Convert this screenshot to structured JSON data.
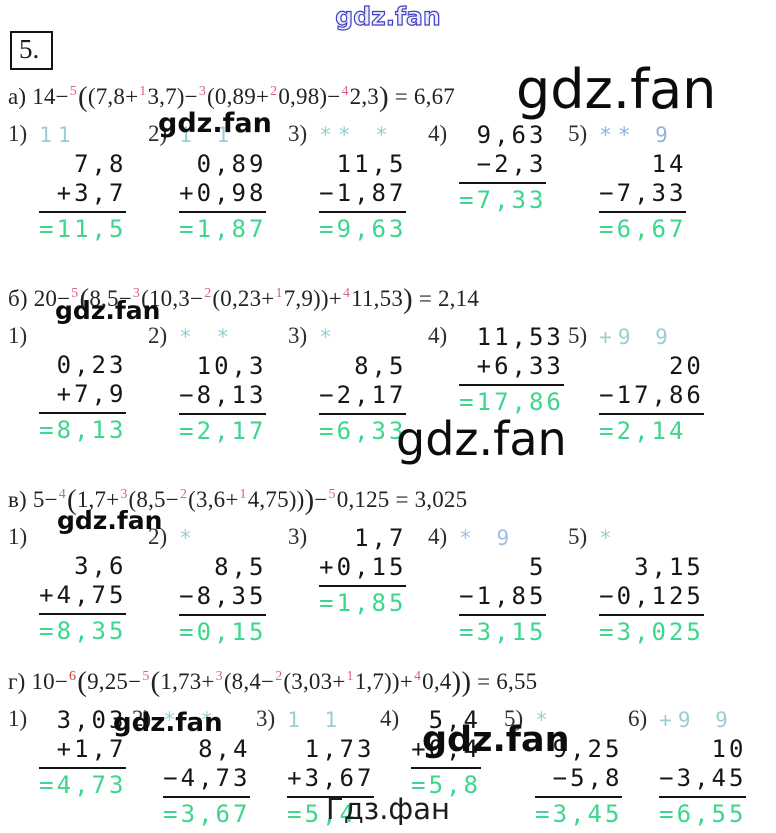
{
  "problem_number": "5.",
  "watermarks": {
    "top": "gdz.fan",
    "big_a": "gdz.fan",
    "row_a": "gdz.fan",
    "row_b": "gdz.fan",
    "mid": "gdz.fan",
    "row_v": "gdz.fan",
    "row_g1": "gdz.fan",
    "row_g2": "gdz.fan",
    "bottom": "Гдз.фан"
  },
  "colors": {
    "answer_green": "#3cd68c",
    "hint_teal": "#99cfd4",
    "superscript_pink": "#d96286",
    "superscript_red": "#c43c3c",
    "watermark_blue": "#4040c0"
  },
  "sections": [
    {
      "id": "a",
      "expr": [
        [
          "t",
          "а) 14−"
        ],
        [
          "s",
          "5"
        ],
        [
          "p",
          "("
        ],
        [
          "t",
          "(7,8+"
        ],
        [
          "s",
          "1"
        ],
        [
          "t",
          "3,7)−"
        ],
        [
          "s",
          "3"
        ],
        [
          "t",
          "(0,89+"
        ],
        [
          "s",
          "2"
        ],
        [
          "t",
          "0,98)−"
        ],
        [
          "s",
          "4"
        ],
        [
          "t",
          "2,3"
        ],
        [
          "p",
          ")"
        ],
        [
          "t",
          " = 6,67"
        ]
      ],
      "columns": [
        {
          "label": "1)",
          "hint": "11",
          "rows": [
            "7,8",
            "+3,7"
          ],
          "answer": "=11,5"
        },
        {
          "label": "2)",
          "hint": "1 1",
          "rows": [
            "0,89",
            "+0,98"
          ],
          "answer": "=1,87"
        },
        {
          "label": "3)",
          "hint": "** *",
          "rows": [
            "11,5",
            "−1,87"
          ],
          "answer": "=9,63"
        },
        {
          "label": "4)",
          "hint": null,
          "rows": [
            "9,63",
            "−2,3"
          ],
          "answer": "=7,33"
        },
        {
          "label": "5)",
          "hint": "** 9",
          "hint_color": "#8fb2e2",
          "rows": [
            "14",
            "−7,33"
          ],
          "answer": "=6,67"
        }
      ]
    },
    {
      "id": "b",
      "expr": [
        [
          "t",
          "б) 20−"
        ],
        [
          "s",
          "5"
        ],
        [
          "p",
          "("
        ],
        [
          "t",
          "8,5−"
        ],
        [
          "s",
          "3"
        ],
        [
          "t",
          "(10,3−"
        ],
        [
          "s",
          "2"
        ],
        [
          "t",
          "(0,23+"
        ],
        [
          "s",
          "1"
        ],
        [
          "t",
          "7,9))+"
        ],
        [
          "s",
          "4"
        ],
        [
          "t",
          "11,53"
        ],
        [
          "p",
          ")"
        ],
        [
          "t",
          " = 2,14"
        ]
      ],
      "columns": [
        {
          "label": "1)",
          "hint": "",
          "rows": [
            "0,23",
            "+7,9"
          ],
          "answer": "=8,13"
        },
        {
          "label": "2)",
          "hint": "* *",
          "rows": [
            "10,3",
            "−8,13"
          ],
          "answer": "=2,17"
        },
        {
          "label": "3)",
          "hint": "*",
          "rows": [
            "8,5",
            "−2,17"
          ],
          "answer": "=6,33"
        },
        {
          "label": "4)",
          "hint": null,
          "rows": [
            "11,53",
            "+6,33"
          ],
          "answer": "=17,86"
        },
        {
          "label": "5)",
          "hint": "+9 9",
          "rows": [
            "20",
            "−17,86"
          ],
          "answer": "=2,14"
        }
      ]
    },
    {
      "id": "v",
      "expr": [
        [
          "t",
          "в) 5−"
        ],
        [
          "s",
          "4"
        ],
        [
          "p",
          "("
        ],
        [
          "t",
          "1,7+"
        ],
        [
          "s",
          "3"
        ],
        [
          "t",
          "(8,5−"
        ],
        [
          "s",
          "2"
        ],
        [
          "t",
          "(3,6+"
        ],
        [
          "s",
          "1"
        ],
        [
          "t",
          "4,75))"
        ],
        [
          "p",
          ")"
        ],
        [
          "t",
          "−"
        ],
        [
          "s",
          "5"
        ],
        [
          "t",
          "0,125 = 3,025"
        ]
      ],
      "columns": [
        {
          "label": "1)",
          "hint": "",
          "rows": [
            "3,6",
            "+4,75"
          ],
          "answer": "=8,35"
        },
        {
          "label": "2)",
          "hint": "*",
          "rows": [
            "8,5",
            "−8,35"
          ],
          "answer": "=0,15"
        },
        {
          "label": "3)",
          "hint": null,
          "rows": [
            "1,7",
            "+0,15"
          ],
          "answer": "=1,85"
        },
        {
          "label": "4)",
          "hint": "* 9",
          "hint_color": "#9cc0e0",
          "rows": [
            "5",
            "−1,85"
          ],
          "answer": "=3,15"
        },
        {
          "label": "5)",
          "hint": "*",
          "rows": [
            "3,15",
            "−0,125"
          ],
          "answer": "=3,025"
        }
      ]
    },
    {
      "id": "g",
      "expr": [
        [
          "t",
          "г) 10−"
        ],
        [
          "s",
          "6",
          "#c43c3c"
        ],
        [
          "p",
          "("
        ],
        [
          "t",
          "9,25−"
        ],
        [
          "s",
          "5"
        ],
        [
          "p",
          "("
        ],
        [
          "t",
          "1,73+"
        ],
        [
          "s",
          "3"
        ],
        [
          "t",
          "(8,4−"
        ],
        [
          "s",
          "2"
        ],
        [
          "t",
          "(3,03+"
        ],
        [
          "s",
          "1"
        ],
        [
          "t",
          "1,7))+"
        ],
        [
          "s",
          "4"
        ],
        [
          "t",
          "0,4"
        ],
        [
          "p",
          ")"
        ],
        [
          "p",
          ")"
        ],
        [
          "t",
          " = 6,55"
        ]
      ],
      "columns": [
        {
          "label": "1)",
          "hint": null,
          "rows": [
            "3,03",
            "+1,7"
          ],
          "answer": "=4,73"
        },
        {
          "label": "2)",
          "hint": "* *",
          "rows": [
            "8,4",
            "−4,73"
          ],
          "answer": "=3,67"
        },
        {
          "label": "3)",
          "hint": "1 1",
          "rows": [
            "1,73",
            "+3,67"
          ],
          "answer": "=5,4"
        },
        {
          "label": "4)",
          "hint": null,
          "rows": [
            "5,4",
            "+0,4"
          ],
          "answer": "=5,8"
        },
        {
          "label": "5)",
          "hint": "*",
          "rows": [
            "9,25",
            "−5,8"
          ],
          "answer": "=3,45"
        },
        {
          "label": "6)",
          "hint": "+9 9",
          "rows": [
            "10",
            "−3,45"
          ],
          "answer": "=6,55"
        }
      ]
    }
  ]
}
